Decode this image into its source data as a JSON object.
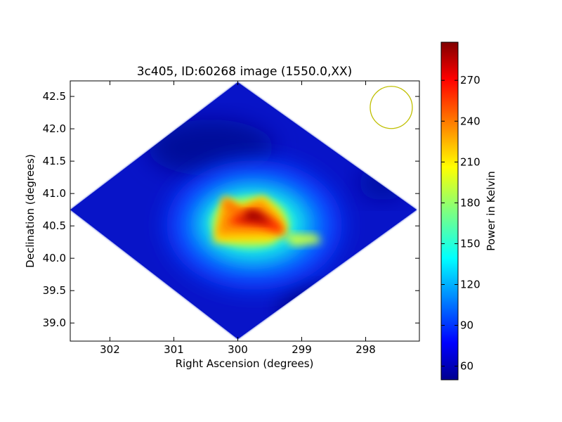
{
  "chart_data": {
    "type": "heatmap",
    "title": "3c405, ID:60268 image (1550.0,XX)",
    "xlabel": "Right Ascension (degrees)",
    "ylabel": "Declination (degrees)",
    "xlim": [
      302.62,
      297.16
    ],
    "ylim": [
      38.72,
      42.74
    ],
    "x_ticks": [
      302,
      301,
      300,
      299,
      298
    ],
    "y_ticks": [
      39.0,
      39.5,
      40.0,
      40.5,
      41.0,
      41.5,
      42.0,
      42.5
    ],
    "x_tick_labels": [
      "302",
      "301",
      "300",
      "299",
      "298"
    ],
    "y_tick_labels": [
      "39.0",
      "39.5",
      "40.0",
      "40.5",
      "41.0",
      "41.5",
      "42.0",
      "42.5"
    ],
    "colormap": "jet",
    "colorbar": {
      "label": "Power in Kelvin",
      "range": [
        50,
        298
      ],
      "ticks": [
        60,
        90,
        120,
        150,
        180,
        210,
        240,
        270
      ],
      "tick_labels": [
        "60",
        "90",
        "120",
        "150",
        "180",
        "210",
        "240",
        "270"
      ]
    },
    "footprint_vertices_deg": [
      [
        300.0,
        42.72
      ],
      [
        302.62,
        40.75
      ],
      [
        300.0,
        38.75
      ],
      [
        297.2,
        40.75
      ]
    ],
    "background_level": 60,
    "sources": [
      {
        "ra": 299.87,
        "dec": 40.73,
        "peak": 294,
        "description": "3C405 (Cygnus A) bright core"
      },
      {
        "ra": 299.2,
        "dec": 40.3,
        "peak": 175,
        "description": "eastern extension"
      }
    ],
    "beam": {
      "ra": 297.6,
      "dec": 42.33,
      "color": "#bfbf00"
    }
  }
}
